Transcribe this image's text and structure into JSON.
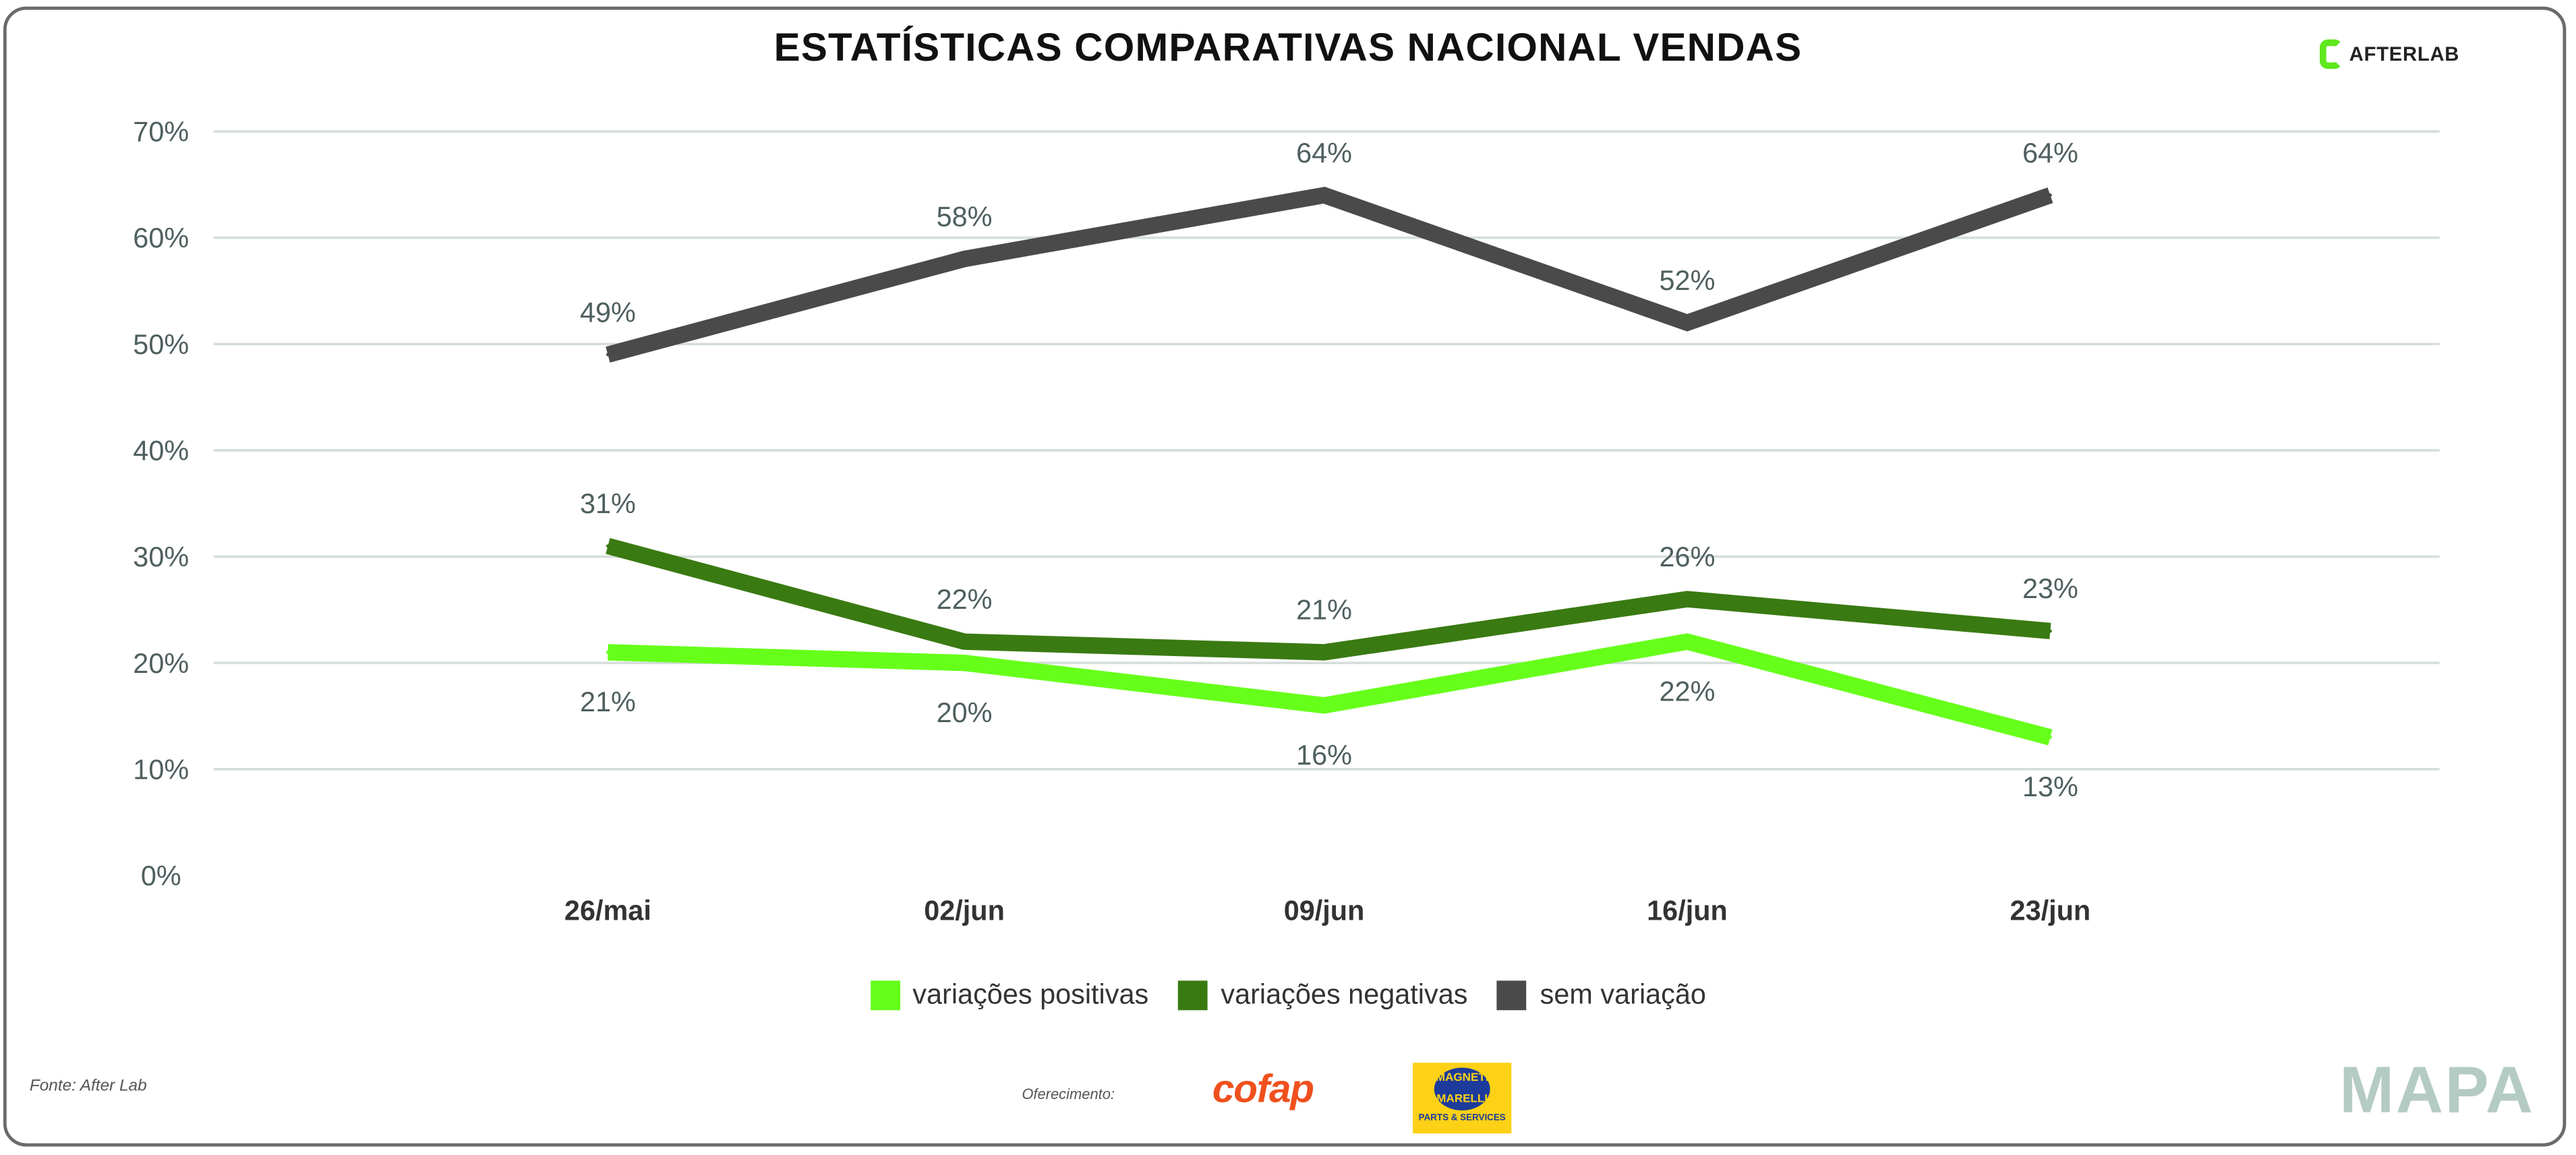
{
  "title": "ESTATÍSTICAS COMPARATIVAS NACIONAL VENDAS",
  "brand": "AFTERLAB",
  "footer": {
    "source": "Fonte: After Lab",
    "sponsor_label": "Oferecimento:",
    "sponsor_1": "cofap",
    "sponsor_2_top": "MAGNETI MARELLI",
    "sponsor_2_bottom": "PARTS & SERVICES",
    "mapa": "MAPA"
  },
  "colors": {
    "positivas": "#66ff1a",
    "negativas": "#3a7a12",
    "sem": "#4a4a4a",
    "grid": "#d5dedb",
    "label": "#4f5f5f"
  },
  "chart_data": {
    "type": "line",
    "title": "ESTATÍSTICAS COMPARATIVAS NACIONAL VENDAS",
    "categories": [
      "26/mai",
      "02/jun",
      "09/jun",
      "16/jun",
      "23/jun"
    ],
    "yticks": [
      "0%",
      "10%",
      "20%",
      "30%",
      "40%",
      "50%",
      "60%",
      "70%"
    ],
    "ylim": [
      0,
      70
    ],
    "grid": true,
    "legend_position": "bottom",
    "series": [
      {
        "name": "variações positivas",
        "key": "positivas",
        "values": [
          21,
          20,
          16,
          22,
          13
        ],
        "labels": [
          "21%",
          "20%",
          "16%",
          "22%",
          "13%"
        ],
        "label_pos": "below"
      },
      {
        "name": "variações negativas",
        "key": "negativas",
        "values": [
          31,
          22,
          21,
          26,
          23
        ],
        "labels": [
          "31%",
          "22%",
          "21%",
          "26%",
          "23%"
        ],
        "label_pos": "above"
      },
      {
        "name": "sem variação",
        "key": "sem",
        "values": [
          49,
          58,
          64,
          52,
          64
        ],
        "labels": [
          "49%",
          "58%",
          "64%",
          "52%",
          "64%"
        ],
        "label_pos": "above"
      }
    ]
  }
}
